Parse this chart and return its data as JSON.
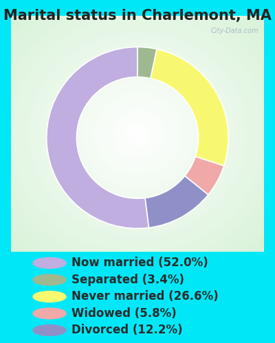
{
  "title": "Marital status in Charlemont, MA",
  "slices": [
    52.0,
    12.2,
    5.8,
    26.6,
    3.4
  ],
  "labels_legend": [
    "Now married (52.0%)",
    "Separated (3.4%)",
    "Never married (26.6%)",
    "Widowed (5.8%)",
    "Divorced (12.2%)"
  ],
  "colors_legend": [
    "#c0aee0",
    "#a0b890",
    "#f8f870",
    "#f0a8a8",
    "#9090c8"
  ],
  "colors_slices": [
    "#c0aee0",
    "#9090c8",
    "#f0a8a8",
    "#f8f870",
    "#a0b890"
  ],
  "bg_cyan": "#00e8f8",
  "bg_chart_color": "#c8e8c8",
  "title_fontsize": 15,
  "legend_fontsize": 12,
  "start_angle": 90,
  "watermark": "City-Data.com"
}
